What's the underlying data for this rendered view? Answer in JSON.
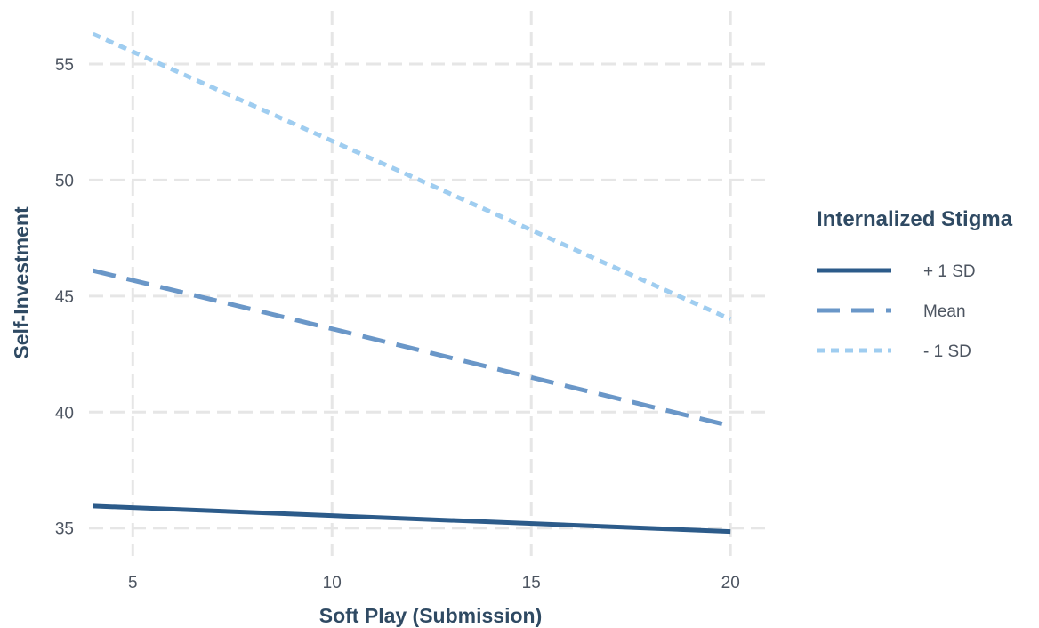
{
  "chart_data": {
    "type": "line",
    "xlabel": "Soft Play (Submission)",
    "ylabel": "Self-Investment",
    "xlim": [
      3.9,
      21
    ],
    "ylim": [
      33.8,
      57.3
    ],
    "x_ticks": [
      5,
      10,
      15,
      20
    ],
    "y_ticks": [
      35,
      40,
      45,
      50,
      55
    ],
    "grid": true,
    "legend": {
      "title": "Internalized Stigma",
      "position": "right"
    },
    "series": [
      {
        "name": "+ 1 SD",
        "x": [
          4,
          20
        ],
        "y": [
          35.95,
          34.85
        ],
        "color": "#2c5b8a",
        "style": "solid"
      },
      {
        "name": "Mean",
        "x": [
          4,
          20
        ],
        "y": [
          46.1,
          39.4
        ],
        "color": "#6a97c8",
        "style": "dashed"
      },
      {
        "name": "- 1 SD",
        "x": [
          4,
          20
        ],
        "y": [
          56.3,
          44.0
        ],
        "color": "#9fcdf0",
        "style": "dotted"
      }
    ]
  }
}
